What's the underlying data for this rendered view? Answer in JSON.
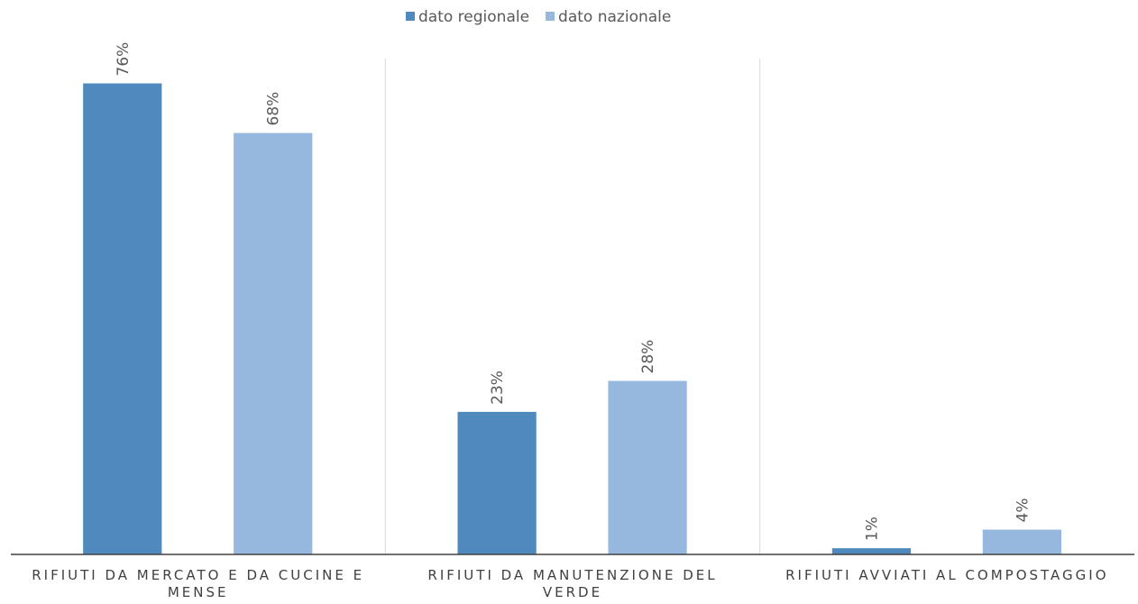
{
  "chart_data": {
    "type": "bar",
    "categories": [
      "RIFIUTI DA MERCATO E DA CUCINE E MENSE",
      "RIFIUTI DA MANUTENZIONE DEL VERDE",
      "RIFIUTI AVVIATI AL COMPOSTAGGIO"
    ],
    "series": [
      {
        "name": "dato regionale",
        "color": "#4f89bd",
        "values": [
          76,
          23,
          1
        ],
        "value_labels": [
          "76%",
          "23%",
          "1%"
        ]
      },
      {
        "name": "dato nazionale",
        "color": "#97b8de",
        "values": [
          68,
          28,
          4
        ],
        "value_labels": [
          "68%",
          "28%",
          "4%"
        ]
      }
    ],
    "ylim": [
      0,
      80
    ],
    "legend": "top"
  }
}
